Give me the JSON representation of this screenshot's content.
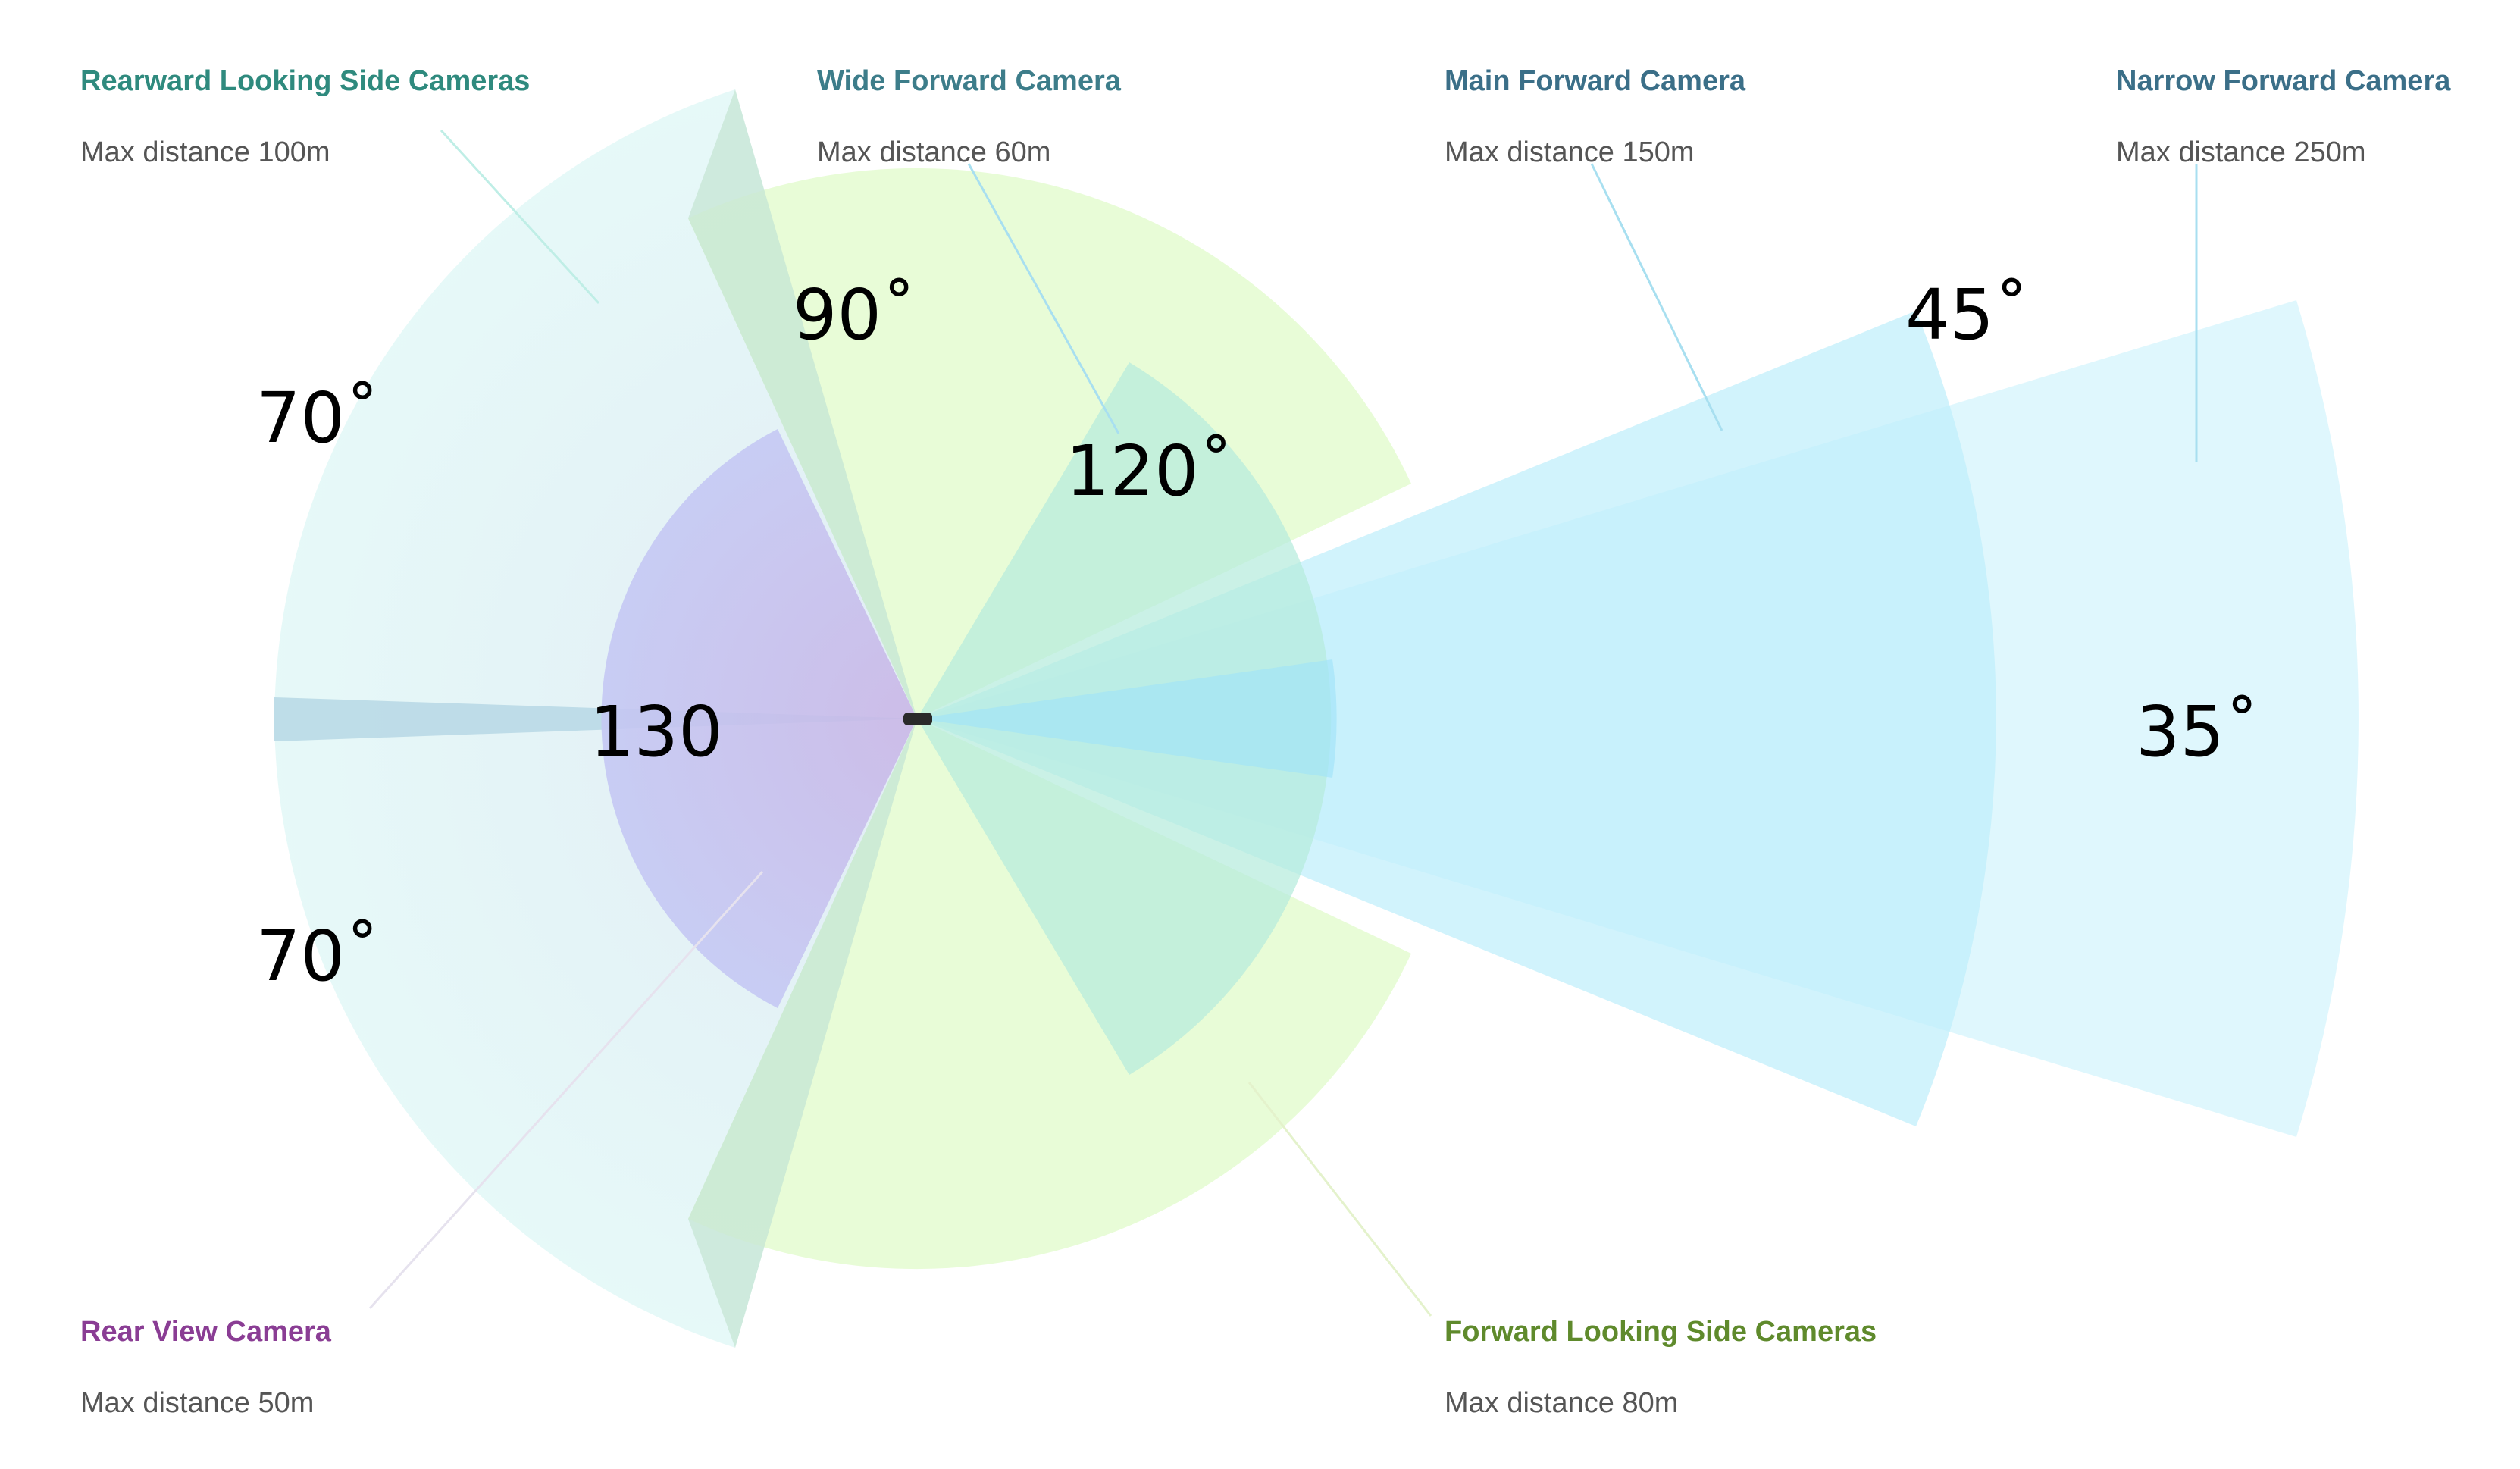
{
  "cameras": {
    "rearward_side": {
      "title": "Rearward Looking Side Cameras",
      "distance": "Max distance 100m",
      "color": "#2f8a7e",
      "fill": "#cde6ee"
    },
    "wide_forward": {
      "title": "Wide Forward Camera",
      "distance": "Max distance 60m",
      "color": "#3d7d8a",
      "fill": "#e4fbd0"
    },
    "main_forward": {
      "title": "Main Forward Camera",
      "distance": "Max distance 150m",
      "color": "#3b6f88",
      "fill": "#c5eef9"
    },
    "narrow_forward": {
      "title": "Narrow Forward Camera",
      "distance": "Max distance 250m",
      "color": "#3b6f88",
      "fill": "#c5eef9"
    },
    "rear_view": {
      "title": "Rear View Camera",
      "distance": "Max distance 50m",
      "color": "#8a3d94",
      "fill": "#c9c6f2"
    },
    "forward_side": {
      "title": "Forward Looking Side Cameras",
      "distance": "Max distance 80m",
      "color": "#5f8a2c",
      "fill": "#e4fbd0"
    }
  },
  "angles": {
    "rearward_top": "70˚",
    "rearward_bottom": "70˚",
    "wide": "120˚",
    "side_forward": "90˚",
    "main": "45˚",
    "narrow": "35˚",
    "rear": "130"
  }
}
